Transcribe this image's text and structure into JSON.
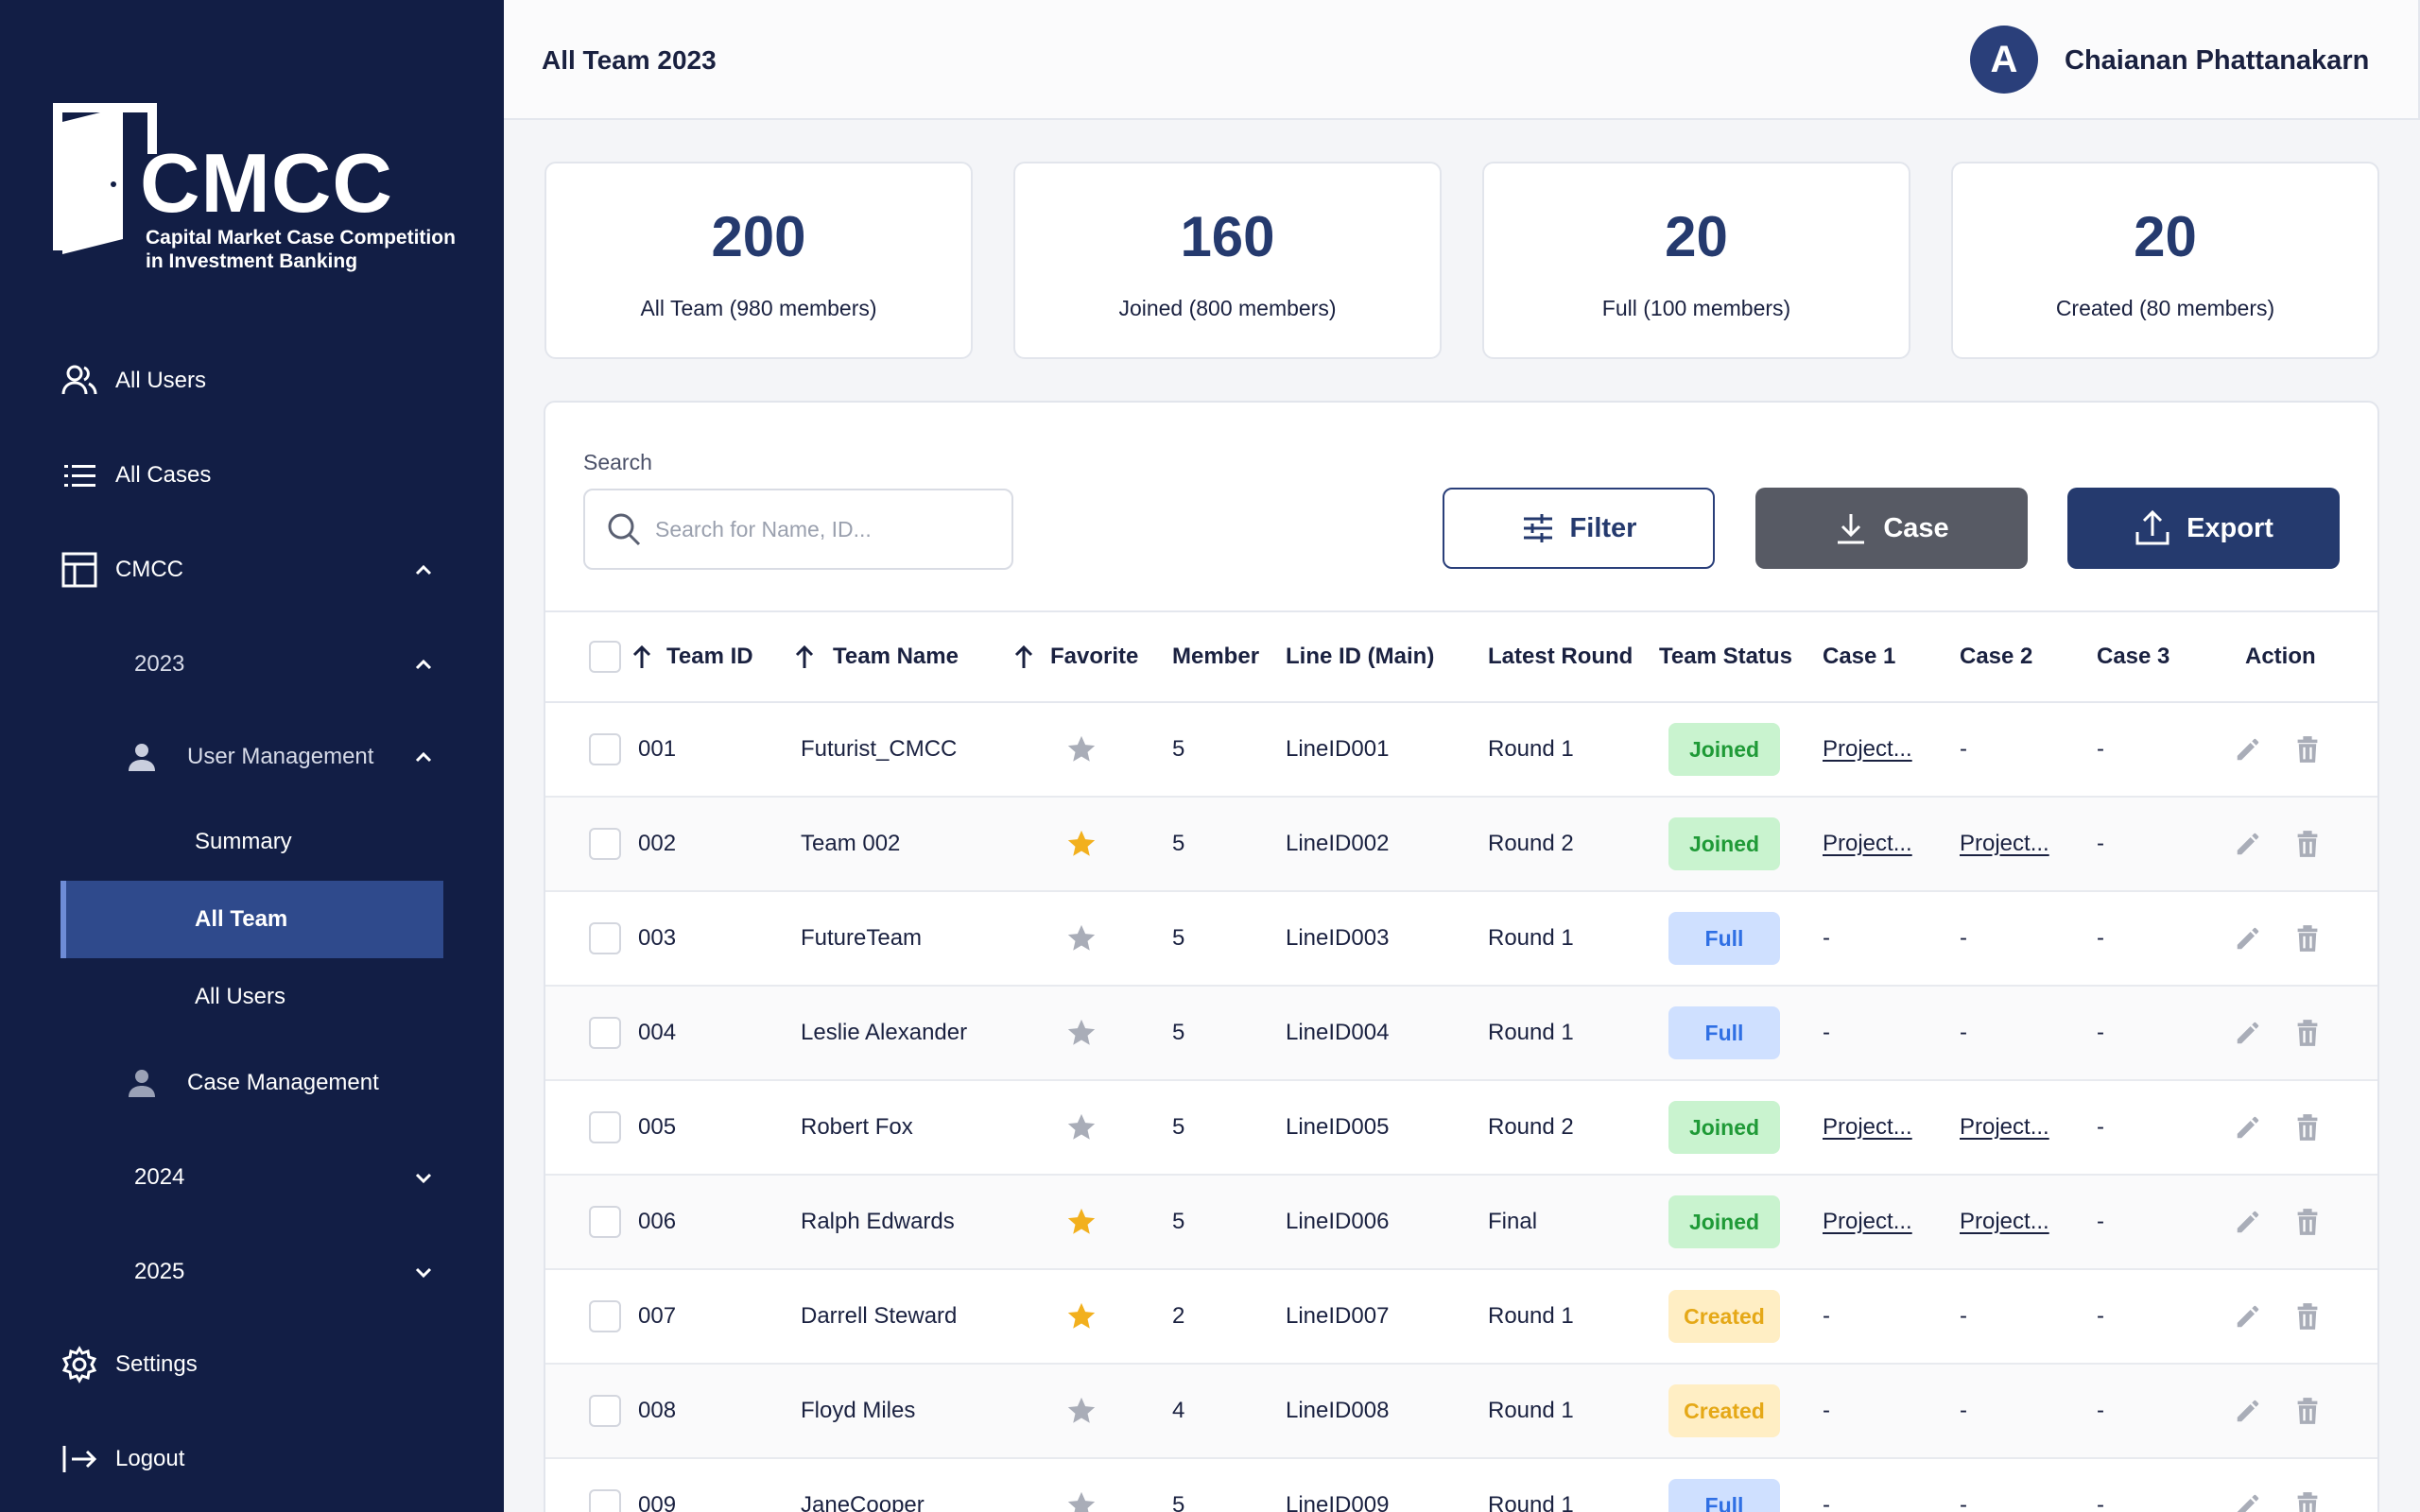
{
  "app": {
    "logo_name": "CMCC",
    "logo_sub_line1": "Capital Market Case Competition",
    "logo_sub_line2": "in Investment Banking"
  },
  "sidebar": {
    "all_users": "All Users",
    "all_cases": "All Cases",
    "cmcc": "CMCC",
    "y2023": "2023",
    "user_management": "User Management",
    "summary": "Summary",
    "all_team": "All Team",
    "all_users_sub": "All Users",
    "case_management": "Case Management",
    "y2024": "2024",
    "y2025": "2025",
    "settings": "Settings",
    "logout": "Logout"
  },
  "header": {
    "title": "All Team 2023",
    "avatar_letter": "A",
    "user_name": "Chaianan Phattanakarn"
  },
  "stats": [
    {
      "value": "200",
      "label": "All Team (980 members)"
    },
    {
      "value": "160",
      "label": "Joined (800 members)"
    },
    {
      "value": "20",
      "label": "Full (100 members)"
    },
    {
      "value": "20",
      "label": "Created (80 members)"
    }
  ],
  "toolbar": {
    "search_label": "Search",
    "search_placeholder": "Search for Name, ID...",
    "filter": "Filter",
    "case": "Case",
    "export": "Export"
  },
  "table": {
    "headers": {
      "team_id": "Team ID",
      "team_name": "Team Name",
      "favorite": "Favorite",
      "member": "Member",
      "line_id": "Line ID (Main)",
      "latest_round": "Latest Round",
      "team_status": "Team Status",
      "case1": "Case 1",
      "case2": "Case 2",
      "case3": "Case 3",
      "action": "Action"
    },
    "rows": [
      {
        "id": "001",
        "name": "Futurist_CMCC",
        "fav": false,
        "member": "5",
        "line": "LineID001",
        "round": "Round 1",
        "status": "Joined",
        "case1": "Project...",
        "case2": "-",
        "case3": "-"
      },
      {
        "id": "002",
        "name": "Team 002",
        "fav": true,
        "member": "5",
        "line": "LineID002",
        "round": "Round 2",
        "status": "Joined",
        "case1": "Project...",
        "case2": "Project...",
        "case3": "-"
      },
      {
        "id": "003",
        "name": "FutureTeam",
        "fav": false,
        "member": "5",
        "line": "LineID003",
        "round": "Round 1",
        "status": "Full",
        "case1": "-",
        "case2": "-",
        "case3": "-"
      },
      {
        "id": "004",
        "name": "Leslie Alexander",
        "fav": false,
        "member": "5",
        "line": "LineID004",
        "round": "Round 1",
        "status": "Full",
        "case1": "-",
        "case2": "-",
        "case3": "-"
      },
      {
        "id": "005",
        "name": "Robert Fox",
        "fav": false,
        "member": "5",
        "line": "LineID005",
        "round": "Round 2",
        "status": "Joined",
        "case1": "Project...",
        "case2": "Project...",
        "case3": "-"
      },
      {
        "id": "006",
        "name": "Ralph Edwards",
        "fav": true,
        "member": "5",
        "line": "LineID006",
        "round": "Final",
        "status": "Joined",
        "case1": "Project...",
        "case2": "Project...",
        "case3": "-"
      },
      {
        "id": "007",
        "name": "Darrell Steward",
        "fav": true,
        "member": "2",
        "line": "LineID007",
        "round": "Round 1",
        "status": "Created",
        "case1": "-",
        "case2": "-",
        "case3": "-"
      },
      {
        "id": "008",
        "name": "Floyd Miles",
        "fav": false,
        "member": "4",
        "line": "LineID008",
        "round": "Round 1",
        "status": "Created",
        "case1": "-",
        "case2": "-",
        "case3": "-"
      },
      {
        "id": "009",
        "name": "JaneCooper",
        "fav": false,
        "member": "5",
        "line": "LineID009",
        "round": "Round 1",
        "status": "Full",
        "case1": "-",
        "case2": "-",
        "case3": "-"
      }
    ]
  },
  "colors": {
    "sidebar_bg": "#121e45",
    "accent": "#253a6e",
    "joined": "#1f9a37",
    "full": "#2f6fe4",
    "created": "#e5a817",
    "star_on": "#f2b01e",
    "star_off": "#a9adb8"
  }
}
